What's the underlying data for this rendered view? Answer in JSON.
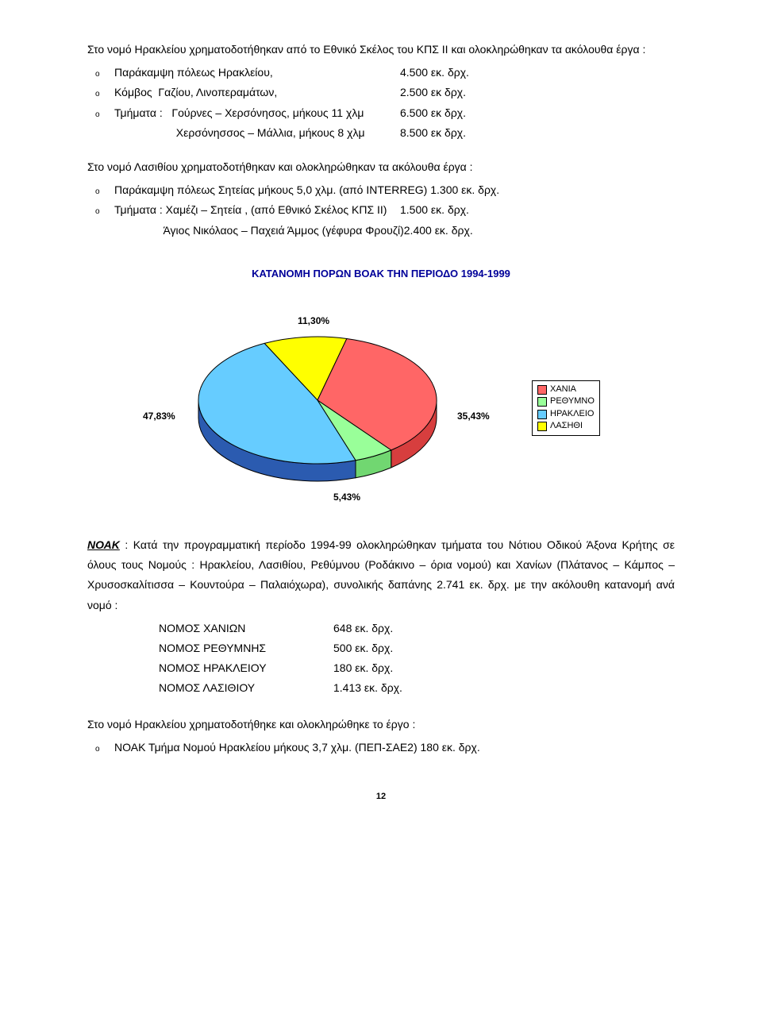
{
  "intro1": "Στο νομό Ηρακλείου χρηματοδοτήθηκαν από το Εθνικό Σκέλος του ΚΠΣ ΙΙ και ολοκληρώθηκαν τα ακόλουθα έργα :",
  "items1": [
    {
      "left": "Παράκαμψη πόλεως Ηρακλείου,",
      "right": "4.500 εκ. δρχ."
    },
    {
      "left": "Κόμβος  Γαζίου, Λινοπεραμάτων,",
      "right": "2.500 εκ δρχ."
    },
    {
      "left": "Τμήματα :   Γούρνες – Χερσόνησος, μήκους 11 χλμ",
      "right": "6.500 εκ δρχ."
    },
    {
      "left": "                    Χερσόνησσος – Μάλλια, μήκους 8 χλμ",
      "right": "8.500 εκ δρχ.",
      "no_bullet": true
    }
  ],
  "intro2": "Στο νομό Λασιθίου χρηματοδοτήθηκαν και ολοκληρώθηκαν τα ακόλουθα έργα :",
  "items2": [
    {
      "left": "Παράκαμψη πόλεως Σητείας μήκους 5,0 χλμ. (από INTERREG) 1.300 εκ. δρχ.",
      "right": ""
    },
    {
      "left": "Τμήματα : Χαμέζι – Σητεία , (από Εθνικό Σκέλος ΚΠΣ ΙΙ)",
      "right": "1.500 εκ. δρχ."
    },
    {
      "left": "                Άγιος Νικόλαος – Παχειά Άμμος (γέφυρα Φρουζί)",
      "right": "2.400 εκ. δρχ.",
      "no_bullet": true
    }
  ],
  "chart": {
    "title": "ΚΑΤΑΝΟΜΗ ΠΟΡΩΝ ΒΟΑΚ ΤΗΝ ΠΕΡΙΟΔΟ 1994-1999",
    "slices": [
      {
        "label": "ΧΑΝΙΑ",
        "pct": 35.43,
        "pct_label": "35,43%",
        "color": "#ff6666"
      },
      {
        "label": "ΡΕΘΥΜΝΟ",
        "pct": 5.43,
        "pct_label": "5,43%",
        "color": "#99ff99"
      },
      {
        "label": "ΗΡΑΚΛΕΙΟ",
        "pct": 47.83,
        "pct_label": "47,83%",
        "color": "#66ccff"
      },
      {
        "label": "ΛΑΣΗΘΙ",
        "pct": 11.3,
        "pct_label": "11,30%",
        "color": "#ffff00"
      }
    ],
    "side_color": "#2b5bb0",
    "stroke": "#000000",
    "background": "#ffffff"
  },
  "noak_label": "ΝΟΑΚ",
  "noak_text": " : Κατά την προγραμματική περίοδο 1994-99 ολοκληρώθηκαν τμήματα του Νότιου Οδικού Άξονα Κρήτης σε όλους τους Νομούς : Ηρακλείου, Λασιθίου, Ρεθύμνου (Ροδάκινο – όρια νομού) και Χανίων (Πλάτανος – Κάμπος – Χρυσοσκαλίτισσα – Κουντούρα – Παλαιόχωρα), συνολικής δαπάνης 2.741 εκ. δρχ. με την ακόλουθη κατανομή ανά νομό :",
  "nomoi": [
    {
      "label": "ΝΟΜΟΣ ΧΑΝΙΩΝ",
      "value": "648 εκ. δρχ."
    },
    {
      "label": "ΝΟΜΟΣ ΡΕΘΥΜΝΗΣ",
      "value": "500 εκ. δρχ."
    },
    {
      "label": "ΝΟΜΟΣ ΗΡΑΚΛΕΙΟΥ",
      "value": "180 εκ. δρχ."
    },
    {
      "label": "ΝΟΜΟΣ ΛΑΣΙΘΙΟΥ",
      "value": "1.413 εκ. δρχ."
    }
  ],
  "closing": "Στο νομό Ηρακλείου χρηματοδοτήθηκε και ολοκληρώθηκε το έργο :",
  "closing_item": "ΝΟΑΚ Τμήμα Νομού Ηρακλείου μήκους 3,7 χλμ. (ΠΕΠ-ΣΑΕ2) 180 εκ. δρχ.",
  "page_number": "12",
  "bullet_char": "o"
}
